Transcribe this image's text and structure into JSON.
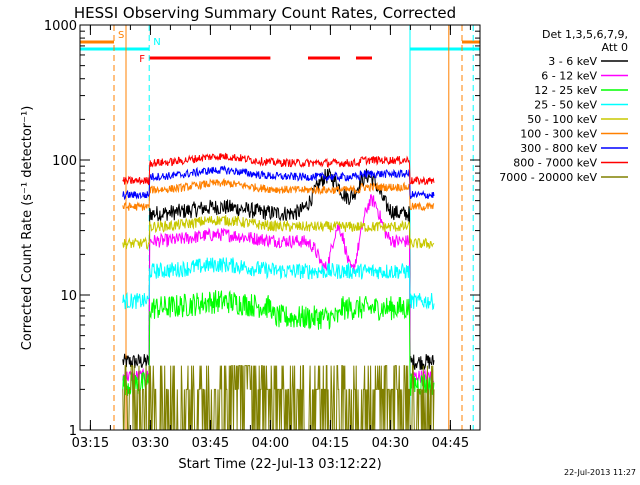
{
  "chart_data": {
    "type": "line",
    "title": "HESSI Observing Summary Count Rates, Corrected",
    "xlabel": "Start Time (22-Jul-13 03:12:22)",
    "ylabel": "Corrected Count Rate (s⁻¹ detector⁻¹)",
    "x_unit": "minutes after 03:12:22",
    "xlim": [
      0,
      100
    ],
    "ylim": [
      1,
      1000
    ],
    "y_scale": "log",
    "x_ticks": [
      {
        "t": 2.6,
        "label": "03:15"
      },
      {
        "t": 17.6,
        "label": "03:30"
      },
      {
        "t": 32.6,
        "label": "03:45"
      },
      {
        "t": 47.6,
        "label": "04:00"
      },
      {
        "t": 62.6,
        "label": "04:15"
      },
      {
        "t": 77.6,
        "label": "04:30"
      },
      {
        "t": 92.6,
        "label": "04:45"
      }
    ],
    "y_ticks": [
      {
        "v": 1,
        "label": "1"
      },
      {
        "v": 10,
        "label": "10"
      },
      {
        "v": 100,
        "label": "100"
      },
      {
        "v": 1000,
        "label": "1000"
      }
    ],
    "legend": {
      "header1": "Det 1,3,5,6,7,9,",
      "header2": "Att 0",
      "position": "right"
    },
    "series": [
      {
        "name": "3 - 6 keV",
        "color": "#000000",
        "base": 40,
        "noise": 0.06
      },
      {
        "name": "6 - 12 keV",
        "color": "#ff00ff",
        "base": 25,
        "noise": 0.05
      },
      {
        "name": "12 - 25 keV",
        "color": "#00ff00",
        "base": 8,
        "noise": 0.09
      },
      {
        "name": "25 - 50 keV",
        "color": "#00ffff",
        "base": 15,
        "noise": 0.06
      },
      {
        "name": "50 - 100 keV",
        "color": "#c8c800",
        "base": 32,
        "noise": 0.04
      },
      {
        "name": "100 - 300 keV",
        "color": "#ff8000",
        "base": 60,
        "noise": 0.03
      },
      {
        "name": "300 - 800 keV",
        "color": "#0000ff",
        "base": 75,
        "noise": 0.03
      },
      {
        "name": "800 - 7000 keV",
        "color": "#ff0000",
        "base": 95,
        "noise": 0.03
      },
      {
        "name": "7000 - 20000 keV",
        "color": "#808000",
        "base": 2,
        "noise": 0.5
      }
    ],
    "data_start": 10.7,
    "data_end": 88.5,
    "dips": [
      {
        "center": 62,
        "width": 4
      },
      {
        "center": 72,
        "width": 3.5
      }
    ],
    "flags": [
      {
        "label": "S",
        "color": "#ff8000",
        "segments": [
          [
            0,
            8.5
          ],
          [
            95.5,
            100
          ]
        ],
        "row": 0
      },
      {
        "label": "N",
        "color": "#00ffff",
        "segments": [
          [
            0,
            17.3
          ],
          [
            82.5,
            100
          ]
        ],
        "row": 1
      },
      {
        "label": "F",
        "color": "#ff0000",
        "segments": [
          [
            17.3,
            47.6
          ],
          [
            57,
            65
          ],
          [
            69,
            73
          ]
        ],
        "row": 2
      }
    ],
    "vlines": [
      {
        "t": 0,
        "color": "#00ffff",
        "dash": false
      },
      {
        "t": 8.5,
        "color": "#ff8000",
        "dash": true
      },
      {
        "t": 11.5,
        "color": "#ff8000",
        "dash": false
      },
      {
        "t": 17.3,
        "color": "#00ffff",
        "dash": true
      },
      {
        "t": 82.5,
        "color": "#00ffff",
        "dash": false
      },
      {
        "t": 92.2,
        "color": "#ff8000",
        "dash": false
      },
      {
        "t": 95.5,
        "color": "#ff8000",
        "dash": true
      },
      {
        "t": 98.3,
        "color": "#00ffff",
        "dash": true
      }
    ],
    "grid": false
  },
  "footer": {
    "timestamp": "22-Jul-2013 11:27"
  }
}
